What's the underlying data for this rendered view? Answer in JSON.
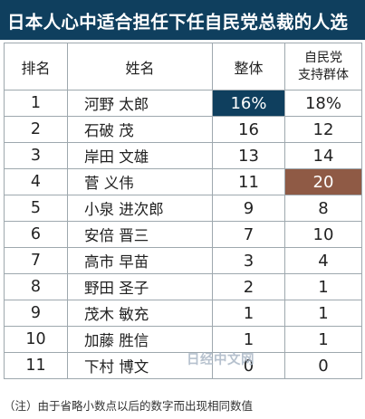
{
  "title": "日本人心中适合担任下任自民党总裁的人选",
  "colors": {
    "title_bg": "#0f3f5e",
    "highlight_overall": "#0f3f5e",
    "highlight_supporters": "#8f5a45"
  },
  "table": {
    "headers": {
      "rank": "排名",
      "name": "姓名",
      "overall": "整体",
      "supporters_line1": "自民党",
      "supporters_line2": "支持群体"
    },
    "rows": [
      {
        "rank": "1",
        "name": "河野 太郎",
        "overall": "16%",
        "supporters": "18%",
        "highlight": "overall"
      },
      {
        "rank": "2",
        "name": "石破 茂",
        "overall": "16",
        "supporters": "12",
        "highlight": ""
      },
      {
        "rank": "3",
        "name": "岸田 文雄",
        "overall": "13",
        "supporters": "14",
        "highlight": ""
      },
      {
        "rank": "4",
        "name": "菅 义伟",
        "overall": "11",
        "supporters": "20",
        "highlight": "supporters"
      },
      {
        "rank": "5",
        "name": "小泉 进次郎",
        "overall": "9",
        "supporters": "8",
        "highlight": ""
      },
      {
        "rank": "6",
        "name": "安倍 晋三",
        "overall": "7",
        "supporters": "10",
        "highlight": ""
      },
      {
        "rank": "7",
        "name": "高市 早苗",
        "overall": "3",
        "supporters": "4",
        "highlight": ""
      },
      {
        "rank": "8",
        "name": "野田 圣子",
        "overall": "2",
        "supporters": "1",
        "highlight": ""
      },
      {
        "rank": "9",
        "name": "茂木 敏充",
        "overall": "1",
        "supporters": "1",
        "highlight": ""
      },
      {
        "rank": "10",
        "name": "加藤 胜信",
        "overall": "1",
        "supporters": "1",
        "highlight": ""
      },
      {
        "rank": "11",
        "name": "下村 博文",
        "overall": "0",
        "supporters": "0",
        "highlight": ""
      }
    ]
  },
  "watermark": "日经中文网",
  "note": "（注）由于省略小数点以后的数字而出现相同数值"
}
